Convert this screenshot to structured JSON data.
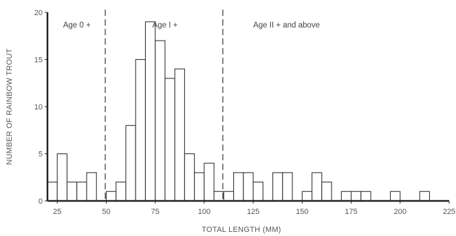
{
  "chart_data": {
    "type": "bar",
    "xlabel": "TOTAL LENGTH (MM)",
    "ylabel": "NUMBER OF RAINBOW TROUT",
    "xlim": [
      20,
      225
    ],
    "ylim": [
      0,
      20
    ],
    "xticks": [
      25,
      50,
      75,
      100,
      125,
      150,
      175,
      200,
      225
    ],
    "yticks": [
      0,
      5,
      10,
      15,
      20
    ],
    "bin_width": 5,
    "bins": [
      {
        "x": 20,
        "value": 2
      },
      {
        "x": 25,
        "value": 5
      },
      {
        "x": 30,
        "value": 2
      },
      {
        "x": 35,
        "value": 2
      },
      {
        "x": 40,
        "value": 3
      },
      {
        "x": 50,
        "value": 1
      },
      {
        "x": 55,
        "value": 2
      },
      {
        "x": 60,
        "value": 8
      },
      {
        "x": 65,
        "value": 15
      },
      {
        "x": 70,
        "value": 19
      },
      {
        "x": 75,
        "value": 17
      },
      {
        "x": 80,
        "value": 13
      },
      {
        "x": 85,
        "value": 14
      },
      {
        "x": 90,
        "value": 5
      },
      {
        "x": 95,
        "value": 3
      },
      {
        "x": 100,
        "value": 4
      },
      {
        "x": 105,
        "value": 1
      },
      {
        "x": 110,
        "value": 1
      },
      {
        "x": 115,
        "value": 3
      },
      {
        "x": 120,
        "value": 3
      },
      {
        "x": 125,
        "value": 2
      },
      {
        "x": 135,
        "value": 3
      },
      {
        "x": 140,
        "value": 3
      },
      {
        "x": 150,
        "value": 1
      },
      {
        "x": 155,
        "value": 3
      },
      {
        "x": 160,
        "value": 2
      },
      {
        "x": 170,
        "value": 1
      },
      {
        "x": 175,
        "value": 1
      },
      {
        "x": 180,
        "value": 1
      },
      {
        "x": 195,
        "value": 1
      },
      {
        "x": 210,
        "value": 1
      }
    ],
    "dividers": [
      49.5,
      109.5
    ],
    "regions": [
      {
        "label": "Age 0 +",
        "x": 35
      },
      {
        "label": "Age I +",
        "x": 80
      },
      {
        "label": "Age II + and above",
        "x": 142
      }
    ],
    "grid": false,
    "legend": "none"
  }
}
